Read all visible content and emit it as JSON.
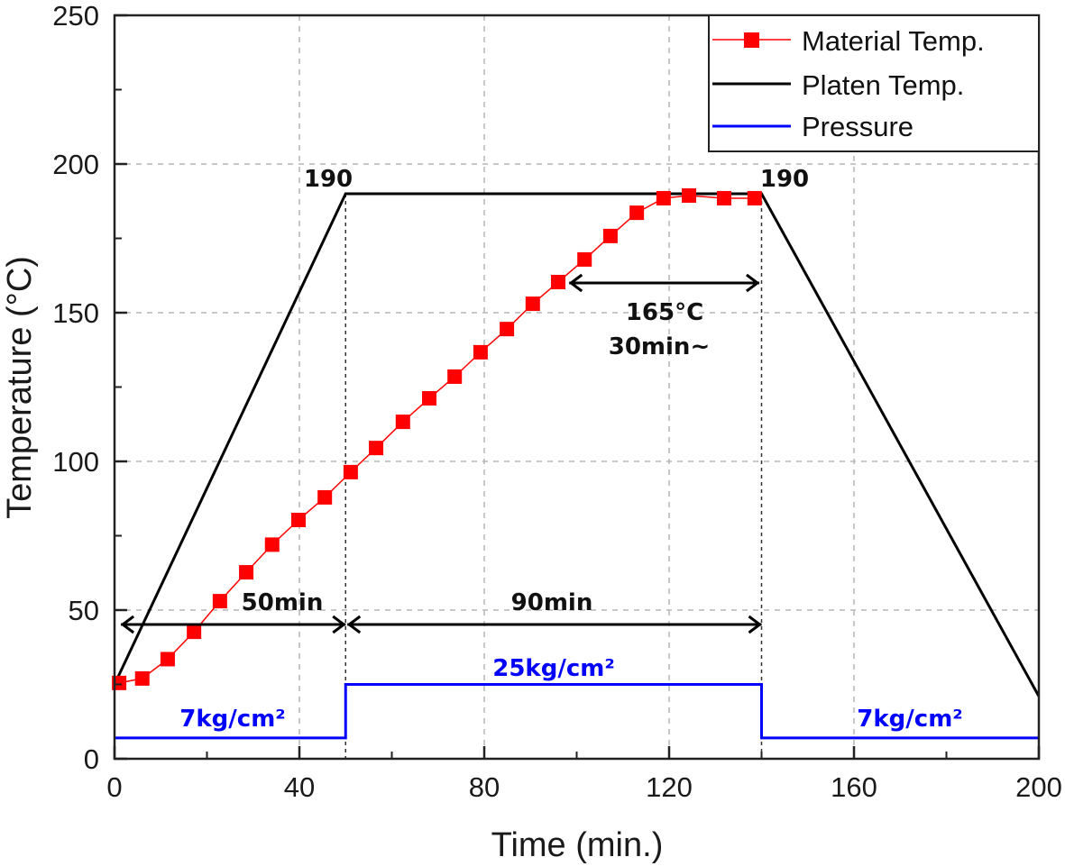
{
  "chart_data": {
    "type": "line",
    "title": "",
    "xlabel": "Time (min.)",
    "ylabel": "Temperature (°C)",
    "xlim": [
      0,
      200
    ],
    "ylim": [
      0,
      250
    ],
    "xticks": [
      0,
      40,
      80,
      120,
      160,
      200
    ],
    "yticks": [
      0,
      50,
      100,
      150,
      200,
      250
    ],
    "xtick_labels": [
      "0",
      "40",
      "80",
      "120",
      "160",
      "200"
    ],
    "ytick_labels": [
      "0",
      "50",
      "100",
      "150",
      "200",
      "250"
    ],
    "grid": true,
    "legend_position": "top-right",
    "series": [
      {
        "name": "Material Temp.",
        "color": "#ff0000",
        "marker": "square",
        "x": [
          1,
          6,
          11.5,
          17.2,
          22.8,
          28.5,
          34.1,
          39.8,
          45.5,
          51.1,
          56.6,
          62.4,
          68.1,
          73.6,
          79.2,
          84.9,
          90.5,
          96,
          101.7,
          107.3,
          113,
          118.8,
          124.3,
          131.9,
          138.5
        ],
        "y": [
          25.5,
          27,
          33.5,
          42.7,
          53,
          62.7,
          72,
          80.3,
          87.9,
          96.4,
          104.5,
          113.3,
          121.2,
          128.5,
          136.7,
          144.5,
          153,
          160.3,
          167.9,
          175.8,
          183.6,
          188.5,
          189.4,
          188.5,
          188.5
        ]
      },
      {
        "name": "Platen Temp.",
        "color": "#000000",
        "x": [
          0,
          50,
          140,
          200
        ],
        "y": [
          25,
          190,
          190,
          21
        ]
      },
      {
        "name": "Pressure",
        "color": "#0000ff",
        "x": [
          0,
          50,
          50,
          140,
          140,
          200
        ],
        "y": [
          7,
          7,
          25,
          25,
          7,
          7
        ]
      }
    ],
    "reference_lines_x": [
      50,
      140
    ],
    "annotations": [
      {
        "text": "190",
        "x": 46,
        "y": 196
      },
      {
        "text": "190",
        "x": 144,
        "y": 196
      },
      {
        "text": "50min",
        "type": "span",
        "x_from": 1,
        "x_to": 50,
        "y": 45
      },
      {
        "text": "90min",
        "type": "span",
        "x_from": 50,
        "x_to": 140,
        "y": 45
      },
      {
        "text": "165°C",
        "type": "span",
        "x_from": 98,
        "x_to": 139.5,
        "y": 160
      },
      {
        "text": "30min~",
        "x": 117,
        "y": 140
      },
      {
        "text": "25kg/cm²",
        "x": 95,
        "y": 32,
        "color": "#0000ff"
      },
      {
        "text": "7kg/cm²",
        "x": 24,
        "y": 14,
        "color": "#0000ff"
      },
      {
        "text": "7kg/cm²",
        "x": 173,
        "y": 14,
        "color": "#0000ff"
      }
    ]
  }
}
